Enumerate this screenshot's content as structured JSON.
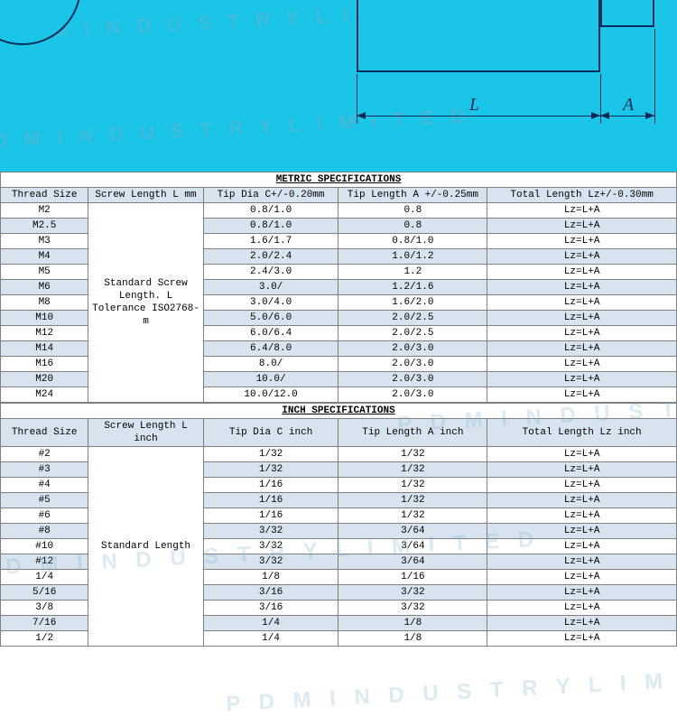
{
  "watermark": "P D M   I N D U S T R Y   L I M I T E D",
  "diagram": {
    "label_L": "L",
    "label_A": "A"
  },
  "metric": {
    "title": "METRIC SPECIFICATIONS",
    "cols": [
      "Thread Size",
      "Screw Length L mm",
      "Tip Dia C+/-0.20mm",
      "Tip Length A +/-0.25mm",
      "Total Length Lz+/-0.30mm"
    ],
    "merge_text": "Standard Screw Length. L Tolerance ISO2768-m",
    "rows": [
      {
        "s": "M2",
        "c": "0.8/1.0",
        "a": "0.8",
        "t": "Lz=L+A",
        "shade": false
      },
      {
        "s": "M2.5",
        "c": "0.8/1.0",
        "a": "0.8",
        "t": "Lz=L+A",
        "shade": true
      },
      {
        "s": "M3",
        "c": "1.6/1.7",
        "a": "0.8/1.0",
        "t": "Lz=L+A",
        "shade": false
      },
      {
        "s": "M4",
        "c": "2.0/2.4",
        "a": "1.0/1.2",
        "t": "Lz=L+A",
        "shade": true
      },
      {
        "s": "M5",
        "c": "2.4/3.0",
        "a": "1.2",
        "t": "Lz=L+A",
        "shade": false
      },
      {
        "s": "M6",
        "c": "3.0/",
        "a": "1.2/1.6",
        "t": "Lz=L+A",
        "shade": true
      },
      {
        "s": "M8",
        "c": "3.0/4.0",
        "a": "1.6/2.0",
        "t": "Lz=L+A",
        "shade": false
      },
      {
        "s": "M10",
        "c": "5.0/6.0",
        "a": "2.0/2.5",
        "t": "Lz=L+A",
        "shade": true
      },
      {
        "s": "M12",
        "c": "6.0/6.4",
        "a": "2.0/2.5",
        "t": "Lz=L+A",
        "shade": false
      },
      {
        "s": "M14",
        "c": "6.4/8.0",
        "a": "2.0/3.0",
        "t": "Lz=L+A",
        "shade": true
      },
      {
        "s": "M16",
        "c": "8.0/",
        "a": "2.0/3.0",
        "t": "Lz=L+A",
        "shade": false
      },
      {
        "s": "M20",
        "c": "10.0/",
        "a": "2.0/3.0",
        "t": "Lz=L+A",
        "shade": true
      },
      {
        "s": "M24",
        "c": "10.0/12.0",
        "a": "2.0/3.0",
        "t": "Lz=L+A",
        "shade": false
      }
    ]
  },
  "inch": {
    "title": "INCH SPECIFICATIONS",
    "cols": [
      "Thread Size",
      "Screw Length L inch",
      "Tip Dia C  inch",
      "Tip Length A   inch",
      "Total Length Lz inch"
    ],
    "merge_text": "Standard Length",
    "rows": [
      {
        "s": "#2",
        "c": "1/32",
        "a": "1/32",
        "t": "Lz=L+A",
        "shade": false
      },
      {
        "s": "#3",
        "c": "1/32",
        "a": "1/32",
        "t": "Lz=L+A",
        "shade": true
      },
      {
        "s": "#4",
        "c": "1/16",
        "a": "1/32",
        "t": "Lz=L+A",
        "shade": false
      },
      {
        "s": "#5",
        "c": "1/16",
        "a": "1/32",
        "t": "Lz=L+A",
        "shade": true
      },
      {
        "s": "#6",
        "c": "1/16",
        "a": "1/32",
        "t": "Lz=L+A",
        "shade": false
      },
      {
        "s": "#8",
        "c": "3/32",
        "a": "3/64",
        "t": "Lz=L+A",
        "shade": true
      },
      {
        "s": "#10",
        "c": "3/32",
        "a": "3/64",
        "t": "Lz=L+A",
        "shade": false
      },
      {
        "s": "#12",
        "c": "3/32",
        "a": "3/64",
        "t": "Lz=L+A",
        "shade": true
      },
      {
        "s": "1/4",
        "c": "1/8",
        "a": "1/16",
        "t": "Lz=L+A",
        "shade": false
      },
      {
        "s": "5/16",
        "c": "3/16",
        "a": "3/32",
        "t": "Lz=L+A",
        "shade": true
      },
      {
        "s": "3/8",
        "c": "3/16",
        "a": "3/32",
        "t": "Lz=L+A",
        "shade": false
      },
      {
        "s": "7/16",
        "c": "1/4",
        "a": "1/8",
        "t": "Lz=L+A",
        "shade": true
      },
      {
        "s": "1/2",
        "c": "1/4",
        "a": "1/8",
        "t": "Lz=L+A",
        "shade": false
      }
    ]
  }
}
